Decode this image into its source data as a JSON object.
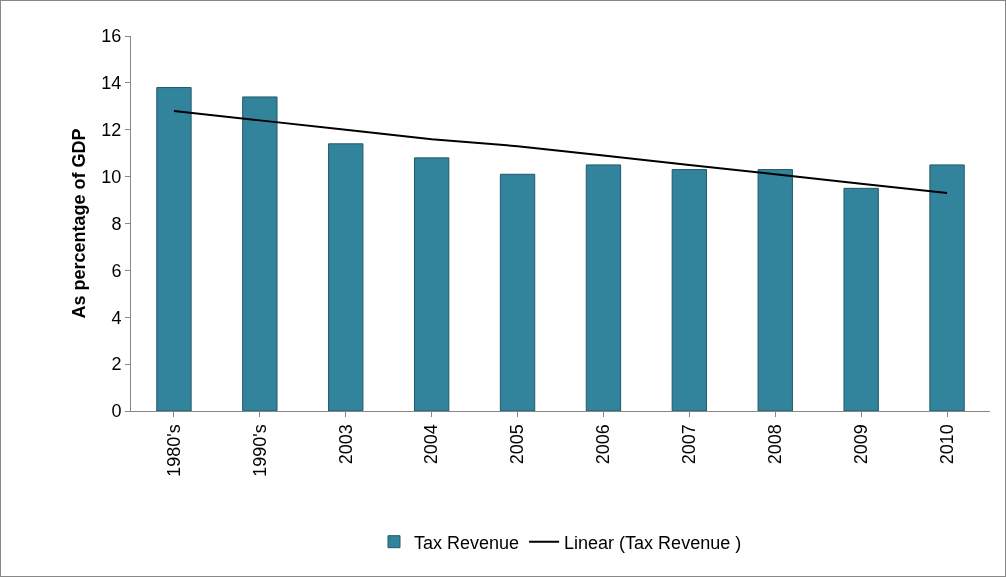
{
  "chart_data": {
    "type": "bar",
    "ylabel": "As percentage of GDP",
    "categories": [
      "1980's",
      "1990's",
      "2003",
      "2004",
      "2005",
      "2006",
      "2007",
      "2008",
      "2009",
      "2010"
    ],
    "series": [
      {
        "name": "Tax Revenue",
        "color": "#31849b",
        "values": [
          13.8,
          13.4,
          11.4,
          10.8,
          10.1,
          10.5,
          10.3,
          10.3,
          9.5,
          10.5
        ]
      },
      {
        "name": "Linear (Tax Revenue )",
        "type": "line",
        "color": "#000000",
        "values": [
          12.8,
          12.4,
          12.0,
          11.6,
          11.3,
          10.9,
          10.5,
          10.1,
          9.7,
          9.3
        ]
      }
    ],
    "ylim": [
      0,
      16
    ],
    "yticks": [
      0,
      2,
      4,
      6,
      8,
      10,
      12,
      14,
      16
    ],
    "grid": false,
    "legend": "bottom"
  }
}
